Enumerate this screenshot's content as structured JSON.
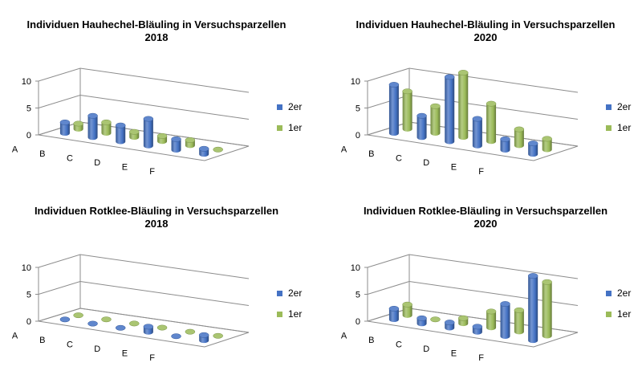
{
  "colors": {
    "series_2er": "#4472C4",
    "series_1er": "#9BBB59",
    "axis": "#8c8c8c"
  },
  "chart_data": [
    {
      "type": "bar",
      "title": "Individuen Hauhechel-Bläuling in Versuchsparzellen",
      "subtitle": "2018",
      "categories": [
        "A",
        "B",
        "C",
        "D",
        "E",
        "F"
      ],
      "series": [
        {
          "name": "2er",
          "values": [
            2,
            4,
            3,
            5,
            2,
            1
          ]
        },
        {
          "name": "1er",
          "values": [
            1,
            2,
            1,
            1,
            1,
            0
          ]
        }
      ],
      "ylim": [
        0,
        10
      ],
      "yticks": [
        "0",
        "5",
        "10"
      ],
      "legend": "right",
      "grid": false
    },
    {
      "type": "bar",
      "title": "Individuen Hauhechel-Bläuling in Versuchsparzellen",
      "subtitle": "2020",
      "categories": [
        "A",
        "B",
        "C",
        "D",
        "E",
        "F"
      ],
      "series": [
        {
          "name": "2er",
          "values": [
            9,
            4,
            12,
            5,
            2,
            2
          ]
        },
        {
          "name": "1er",
          "values": [
            7,
            5,
            12,
            7,
            3,
            2
          ]
        }
      ],
      "ylim": [
        0,
        10
      ],
      "yticks": [
        "0",
        "5",
        "10"
      ],
      "legend": "right",
      "grid": false
    },
    {
      "type": "bar",
      "title": "Individuen Rotklee-Bläuling in Versuchsparzellen",
      "subtitle": "2018",
      "categories": [
        "A",
        "B",
        "C",
        "D",
        "E",
        "F"
      ],
      "series": [
        {
          "name": "2er",
          "values": [
            0,
            0,
            0,
            1,
            0,
            1
          ]
        },
        {
          "name": "1er",
          "values": [
            0,
            0,
            0,
            0,
            0,
            0
          ]
        }
      ],
      "ylim": [
        0,
        10
      ],
      "yticks": [
        "0",
        "5",
        "10"
      ],
      "legend": "right",
      "grid": false
    },
    {
      "type": "bar",
      "title": "Individuen Rotklee-Bläuling in Versuchsparzellen",
      "subtitle": "2020",
      "categories": [
        "A",
        "B",
        "C",
        "D",
        "E",
        "F"
      ],
      "series": [
        {
          "name": "2er",
          "values": [
            2,
            1,
            1,
            1,
            6,
            12
          ]
        },
        {
          "name": "1er",
          "values": [
            2,
            0,
            1,
            3,
            4,
            10
          ]
        }
      ],
      "ylim": [
        0,
        10
      ],
      "yticks": [
        "0",
        "5",
        "10"
      ],
      "legend": "right",
      "grid": false
    }
  ]
}
